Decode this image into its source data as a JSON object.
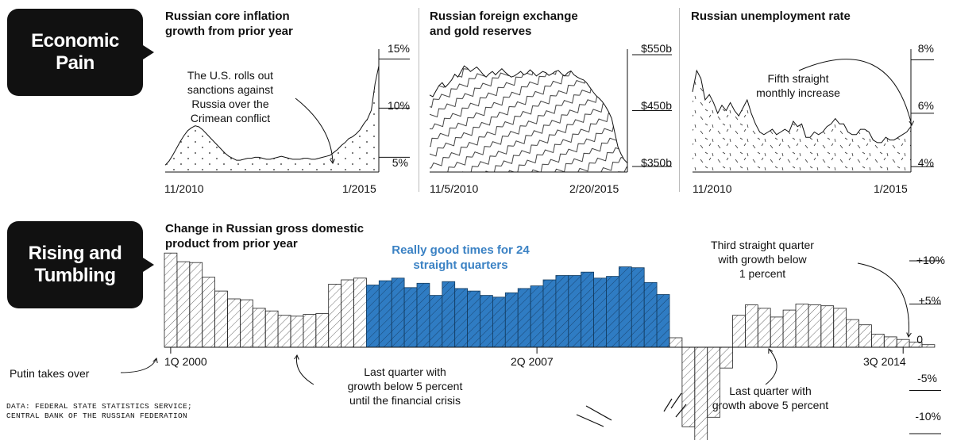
{
  "sections": {
    "economic_pain": "Economic\nPain",
    "rising_tumbling": "Rising and\nTumbling"
  },
  "colors": {
    "accent": "#3b82c4",
    "ink": "#111111"
  },
  "source_note": {
    "line1": "DATA: FEDERAL STATE STATISTICS SERVICE;",
    "line2": "CENTRAL BANK OF THE RUSSIAN FEDERATION"
  },
  "chart_data": [
    {
      "id": "inflation",
      "type": "area",
      "title_line1": "Russian core inflation",
      "title_line2": "growth from prior year",
      "x_start_label": "11/2010",
      "x_end_label": "1/2015",
      "y_ticks": [
        "15%",
        "10%",
        "5%"
      ],
      "y_tick_values": [
        15,
        10,
        5
      ],
      "ylim": [
        3.5,
        16
      ],
      "annotation": [
        "The U.S. rolls out",
        "sanctions against",
        "Russia over the",
        "Crimean conflict"
      ],
      "values": [
        4.2,
        4.6,
        5.2,
        5.9,
        6.6,
        7.2,
        7.7,
        8.0,
        8.2,
        8.1,
        7.8,
        7.4,
        7.0,
        6.6,
        6.2,
        5.8,
        5.4,
        5.1,
        4.9,
        4.7,
        4.7,
        4.8,
        4.9,
        4.9,
        5.0,
        5.0,
        4.9,
        4.8,
        4.8,
        4.9,
        5.0,
        5.1,
        5.0,
        4.9,
        4.8,
        4.8,
        4.8,
        4.9,
        4.9,
        4.8,
        4.8,
        4.9,
        5.0,
        5.1,
        5.2,
        5.5,
        5.8,
        6.2,
        6.5,
        6.9,
        7.1,
        7.4,
        7.8,
        8.4,
        8.9,
        9.8,
        12.5,
        14.3
      ]
    },
    {
      "id": "reserves",
      "type": "area",
      "title_line1": "Russian foreign exchange",
      "title_line2": "and gold reserves",
      "x_start_label": "11/5/2010",
      "x_end_label": "2/20/2015",
      "y_ticks": [
        "$550b",
        "$450b",
        "$350b"
      ],
      "y_tick_values": [
        550,
        450,
        350
      ],
      "ylim": [
        340,
        560
      ],
      "values": [
        478,
        475,
        485,
        495,
        500,
        492,
        498,
        505,
        515,
        510,
        520,
        530,
        526,
        520,
        524,
        528,
        522,
        515,
        510,
        516,
        520,
        514,
        520,
        525,
        519,
        514,
        510,
        512,
        516,
        520,
        514,
        517,
        523,
        518,
        512,
        516,
        520,
        518,
        513,
        516,
        520,
        522,
        516,
        512,
        518,
        521,
        514,
        510,
        507,
        505,
        500,
        492,
        484,
        477,
        472,
        466,
        458,
        448,
        436,
        410,
        385,
        372,
        362,
        356
      ]
    },
    {
      "id": "unemployment",
      "type": "area",
      "title_line1": "Russian unemployment rate",
      "x_start_label": "11/2010",
      "x_end_label": "1/2015",
      "y_ticks": [
        "8%",
        "6%",
        "4%"
      ],
      "y_tick_values": [
        8,
        6,
        4
      ],
      "ylim": [
        3.8,
        8.4
      ],
      "annotation": [
        "Fifth straight",
        "monthly increase"
      ],
      "values": [
        6.8,
        7.6,
        7.3,
        6.5,
        6.7,
        6.4,
        6.0,
        6.3,
        6.1,
        6.4,
        6.1,
        5.9,
        6.2,
        6.5,
        6.0,
        5.6,
        5.3,
        5.2,
        5.3,
        5.4,
        5.2,
        5.3,
        5.4,
        5.3,
        5.7,
        5.5,
        5.6,
        5.1,
        5.1,
        5.3,
        5.2,
        5.3,
        5.5,
        5.6,
        5.8,
        5.6,
        5.6,
        5.3,
        5.2,
        5.2,
        5.4,
        5.4,
        5.3,
        5.0,
        4.9,
        4.9,
        5.1,
        5.0,
        5.0,
        5.1,
        5.2,
        5.3,
        5.5
      ]
    },
    {
      "id": "gdp",
      "type": "bar",
      "title_line1": "Change in Russian gross domestic",
      "title_line2": "product from prior year",
      "x_labels": [
        "1Q 2000",
        "2Q 2007",
        "3Q 2014"
      ],
      "x_label_indices": [
        0,
        29,
        58
      ],
      "y_ticks": [
        "+10%",
        "+5%",
        "0",
        "-5%",
        "-10%"
      ],
      "y_tick_values": [
        10,
        5,
        0,
        -5,
        -10
      ],
      "ylim": [
        -11,
        11
      ],
      "highlight_range": [
        16,
        39
      ],
      "highlight_note": [
        "Really good times for 24",
        "straight quarters"
      ],
      "annotations": {
        "start": "Putin takes over",
        "low5": [
          "Last quarter with",
          "growth below 5 percent",
          "until the financial crisis"
        ],
        "high5": [
          "Last quarter with",
          "growth above 5 percent"
        ],
        "third": [
          "Third straight quarter",
          "with growth below",
          "1 percent"
        ]
      },
      "values": [
        10.9,
        9.9,
        9.8,
        8.1,
        6.5,
        5.6,
        5.5,
        4.5,
        4.2,
        3.7,
        3.6,
        3.8,
        3.9,
        7.3,
        7.8,
        8.0,
        7.2,
        7.7,
        8.0,
        6.9,
        7.4,
        6.0,
        7.6,
        6.8,
        6.5,
        6.0,
        5.8,
        6.3,
        6.8,
        7.1,
        7.8,
        8.3,
        8.3,
        8.7,
        8.0,
        8.2,
        9.3,
        9.2,
        7.5,
        6.1,
        1.1,
        -9.2,
        -11.1,
        -8.1,
        -2.4,
        3.7,
        4.9,
        4.5,
        3.5,
        4.3,
        5.0,
        4.9,
        4.8,
        4.5,
        3.2,
        2.6,
        1.5,
        1.2,
        0.9,
        0.6,
        0.3
      ]
    }
  ]
}
